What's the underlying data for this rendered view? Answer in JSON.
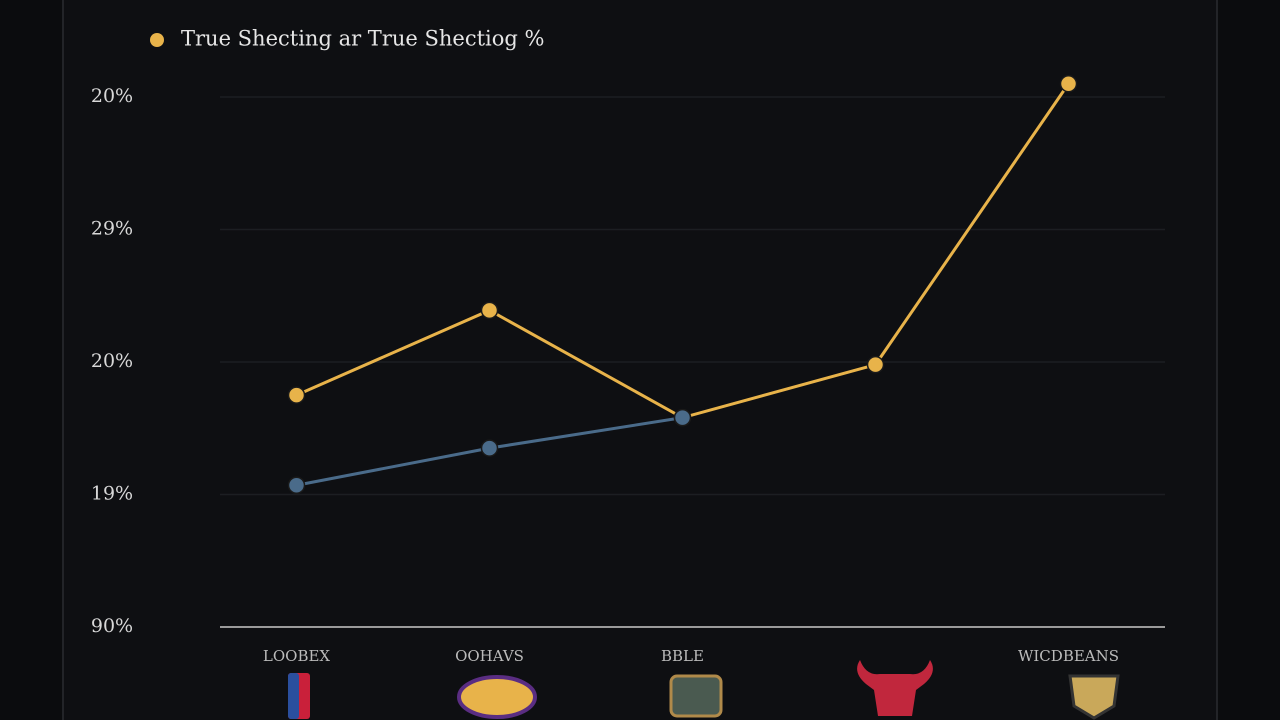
{
  "chart_data": {
    "type": "line",
    "legend_label": "True Shecting ar True Shectiog %",
    "categories": [
      "LOOBEX",
      "OOHAVS",
      "BBLE",
      null,
      "WICDBEANS"
    ],
    "series": [
      {
        "name": "True Shecting ar True Shectiog %",
        "color": "#e8b34a",
        "values": [
          1.75,
          2.39,
          1.58,
          1.98,
          4.1
        ]
      },
      {
        "color": "#4a6b8a",
        "values": [
          1.07,
          1.35,
          1.58,
          null,
          null
        ]
      }
    ],
    "ylim": [
      0,
      4.2
    ],
    "yticks": [
      {
        "value": 0,
        "label": "90%"
      },
      {
        "value": 1,
        "label": "19%"
      },
      {
        "value": 2,
        "label": "20%"
      },
      {
        "value": 3,
        "label": "29%"
      },
      {
        "value": 4,
        "label": "20%"
      }
    ],
    "grid": true
  }
}
